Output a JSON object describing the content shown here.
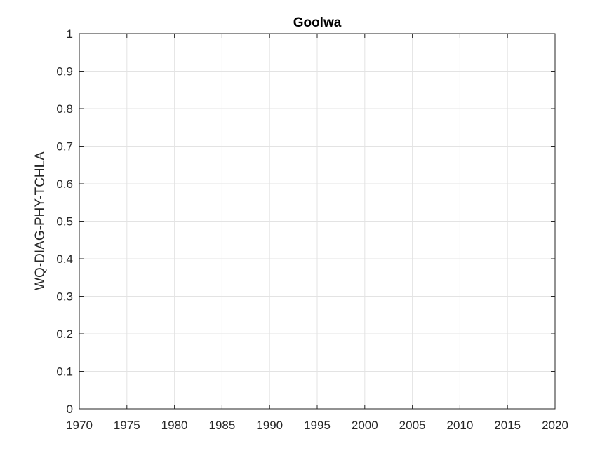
{
  "chart_data": {
    "type": "line",
    "title": "Goolwa",
    "xlabel": "",
    "ylabel": "WQ-DIAG-PHY-TCHLA",
    "xlim": [
      1970,
      2020
    ],
    "ylim": [
      0,
      1
    ],
    "xticks": [
      "1970",
      "1975",
      "1980",
      "1985",
      "1990",
      "1995",
      "2000",
      "2005",
      "2010",
      "2015",
      "2020"
    ],
    "yticks": [
      "0",
      "0.1",
      "0.2",
      "0.3",
      "0.4",
      "0.5",
      "0.6",
      "0.7",
      "0.8",
      "0.9",
      "1"
    ],
    "grid": true,
    "series": []
  },
  "colors": {
    "axis": "#262626",
    "grid": "#e3e3e3",
    "background": "#ffffff"
  }
}
